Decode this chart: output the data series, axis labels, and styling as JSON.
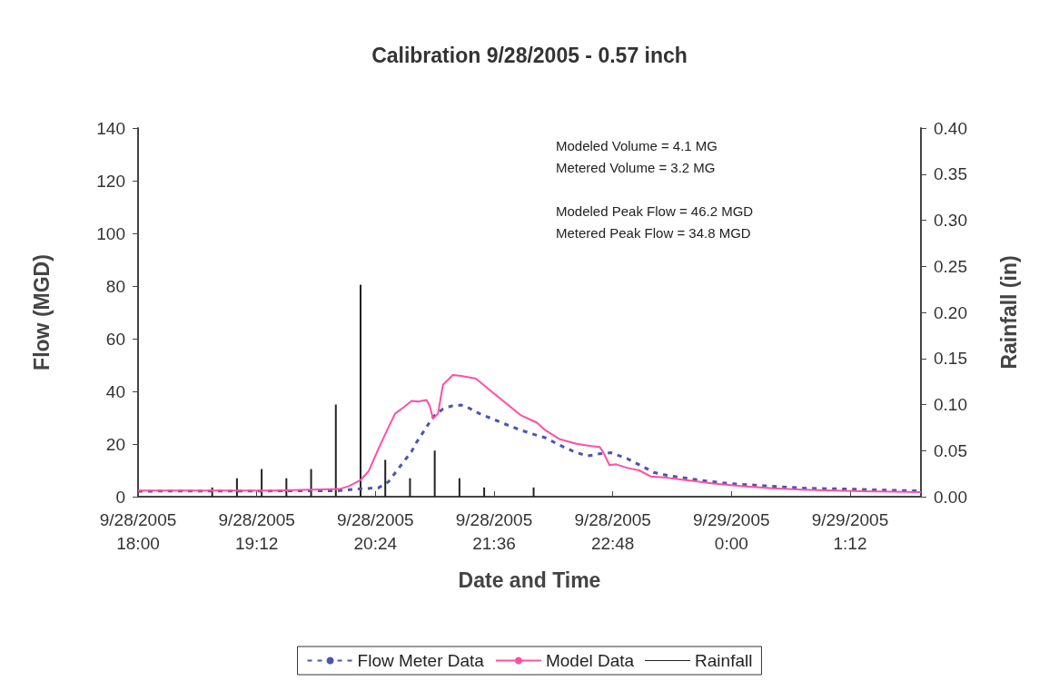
{
  "chart_data": {
    "type": "line",
    "title": "Calibration 9/28/2005 - 0.57 inch",
    "xlabel": "Date and Time",
    "ylabel": "Flow (MGD)",
    "y2label": "Rainfall (in)",
    "annotations": [
      "Modeled Volume = 4.1 MG",
      "Metered Volume = 3.2 MG",
      "Modeled Peak Flow = 46.2 MGD",
      "Metered Peak Flow = 34.8 MGD"
    ],
    "xlim": [
      "2005-09-28T18:00",
      "2005-09-29T01:55"
    ],
    "xticks": [
      {
        "value": "2005-09-28T18:00",
        "label": "9/28/2005\n18:00"
      },
      {
        "value": "2005-09-28T19:12",
        "label": "9/28/2005\n19:12"
      },
      {
        "value": "2005-09-28T20:24",
        "label": "9/28/2005\n20:24"
      },
      {
        "value": "2005-09-28T21:36",
        "label": "9/28/2005\n21:36"
      },
      {
        "value": "2005-09-28T22:48",
        "label": "9/28/2005\n22:48"
      },
      {
        "value": "2005-09-29T00:00",
        "label": "9/29/2005\n0:00"
      },
      {
        "value": "2005-09-29T01:12",
        "label": "9/29/2005\n1:12"
      }
    ],
    "ylim": [
      0,
      140
    ],
    "yticks": [
      0,
      20,
      40,
      60,
      80,
      100,
      120,
      140
    ],
    "y2lim": [
      0,
      0.4
    ],
    "y2ticks": [
      {
        "value": 0,
        "label": "0.00"
      },
      {
        "value": 0.05,
        "label": "0.05"
      },
      {
        "value": 0.1,
        "label": "0.10"
      },
      {
        "value": 0.15,
        "label": "0.15"
      },
      {
        "value": 0.2,
        "label": "0.20"
      },
      {
        "value": 0.25,
        "label": "0.25"
      },
      {
        "value": 0.3,
        "label": "0.30"
      },
      {
        "value": 0.35,
        "label": "0.35"
      },
      {
        "value": 0.4,
        "label": "0.40"
      }
    ],
    "grid": false,
    "legend": "bottom",
    "marker": "none",
    "series": [
      {
        "name": "Flow Meter Data",
        "color": "#4a55b0",
        "line_style": "dashed",
        "x": [
          "2005-09-28T18:00",
          "2005-09-28T19:22",
          "2005-09-28T20:00",
          "2005-09-28T20:13",
          "2005-09-28T20:26",
          "2005-09-28T20:32",
          "2005-09-28T20:39",
          "2005-09-28T20:46",
          "2005-09-28T20:49",
          "2005-09-28T20:55",
          "2005-09-28T20:59",
          "2005-09-28T21:05",
          "2005-09-28T21:10",
          "2005-09-28T21:16",
          "2005-09-28T21:20",
          "2005-09-28T21:27",
          "2005-09-28T21:34",
          "2005-09-28T21:43",
          "2005-09-28T21:52",
          "2005-09-28T22:02",
          "2005-09-28T22:07",
          "2005-09-28T22:16",
          "2005-09-28T22:26",
          "2005-09-28T22:33",
          "2005-09-28T22:40",
          "2005-09-28T22:47",
          "2005-09-28T22:57",
          "2005-09-28T23:06",
          "2005-09-28T23:13",
          "2005-09-28T23:21",
          "2005-09-28T23:44",
          "2005-09-28T23:59",
          "2005-09-29T00:14",
          "2005-09-29T00:31",
          "2005-09-29T00:46",
          "2005-09-29T01:02",
          "2005-09-29T01:17",
          "2005-09-29T01:31",
          "2005-09-29T01:46",
          "2005-09-29T01:55"
        ],
        "values": [
          2.1,
          2.2,
          2.2,
          2.9,
          3.4,
          5.7,
          11.5,
          17.2,
          20.7,
          26.4,
          30.4,
          33.3,
          34.4,
          34.8,
          33.9,
          31.6,
          29.8,
          27.5,
          25.3,
          23.3,
          22.4,
          19.5,
          16.7,
          15.5,
          16.3,
          16.7,
          14.4,
          11.5,
          9.2,
          8.1,
          6,
          5,
          4.4,
          3.7,
          3.2,
          3,
          2.8,
          2.5,
          2.3,
          2.2
        ]
      },
      {
        "name": "Model Data",
        "color": "#ff4fa3",
        "line_style": "solid",
        "x": [
          "2005-09-28T18:00",
          "2005-09-28T19:22",
          "2005-09-28T20:02",
          "2005-09-28T20:08",
          "2005-09-28T20:15",
          "2005-09-28T20:20",
          "2005-09-28T20:26",
          "2005-09-28T20:32",
          "2005-09-28T20:36",
          "2005-09-28T20:41",
          "2005-09-28T20:46",
          "2005-09-28T20:50",
          "2005-09-28T20:55",
          "2005-09-28T20:57",
          "2005-09-28T20:59",
          "2005-09-28T21:02",
          "2005-09-28T21:05",
          "2005-09-28T21:11",
          "2005-09-28T21:16",
          "2005-09-28T21:25",
          "2005-09-28T21:34",
          "2005-09-28T21:43",
          "2005-09-28T21:52",
          "2005-09-28T22:02",
          "2005-09-28T22:07",
          "2005-09-28T22:16",
          "2005-09-28T22:26",
          "2005-09-28T22:35",
          "2005-09-28T22:40",
          "2005-09-28T22:42",
          "2005-09-28T22:46",
          "2005-09-28T22:50",
          "2005-09-28T22:57",
          "2005-09-28T23:04",
          "2005-09-28T23:11",
          "2005-09-28T23:21",
          "2005-09-28T23:30",
          "2005-09-28T23:49",
          "2005-09-29T00:07",
          "2005-09-29T00:25",
          "2005-09-29T00:43",
          "2005-09-29T01:02",
          "2005-09-29T01:20",
          "2005-09-29T01:38",
          "2005-09-29T01:55"
        ],
        "values": [
          2.3,
          2.3,
          2.9,
          4,
          6.3,
          9.8,
          18.4,
          26.4,
          31.6,
          33.9,
          36.4,
          36.1,
          36.7,
          34.4,
          29.6,
          31.6,
          42.5,
          46.2,
          45.9,
          44.8,
          40.2,
          35.6,
          31,
          28.1,
          25.3,
          21.8,
          20.1,
          19.2,
          18.9,
          17.2,
          12,
          12.3,
          10.9,
          10,
          7.7,
          7.2,
          6.5,
          5,
          4,
          3.2,
          2.7,
          2.3,
          2.1,
          1.9,
          1.7
        ]
      },
      {
        "name": "Rainfall",
        "type": "bar",
        "axis": "y2",
        "color": "#222222",
        "x": [
          "2005-09-28T18:45",
          "2005-09-28T19:00",
          "2005-09-28T19:15",
          "2005-09-28T19:30",
          "2005-09-28T19:45",
          "2005-09-28T20:00",
          "2005-09-28T20:15",
          "2005-09-28T20:30",
          "2005-09-28T20:45",
          "2005-09-28T21:00",
          "2005-09-28T21:15",
          "2005-09-28T21:30",
          "2005-09-28T22:00"
        ],
        "values": [
          0.01,
          0.02,
          0.03,
          0.02,
          0.03,
          0.1,
          0.23,
          0.04,
          0.02,
          0.05,
          0.02,
          0.01,
          0.01
        ]
      }
    ]
  }
}
